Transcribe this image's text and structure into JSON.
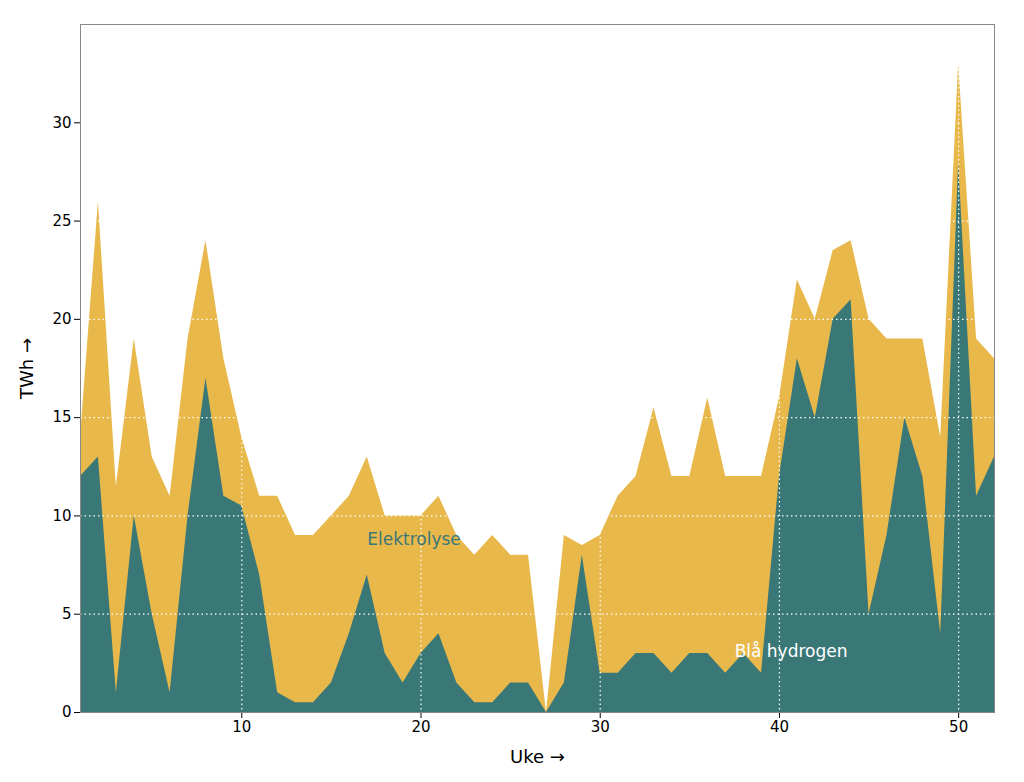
{
  "chart_data": {
    "type": "area",
    "xlabel": "Uke",
    "ylabel": "TWh",
    "x": [
      1,
      2,
      3,
      4,
      5,
      6,
      7,
      8,
      9,
      10,
      11,
      12,
      13,
      14,
      15,
      16,
      17,
      18,
      19,
      20,
      21,
      22,
      23,
      24,
      25,
      26,
      27,
      28,
      29,
      30,
      31,
      32,
      33,
      34,
      35,
      36,
      37,
      38,
      39,
      40,
      41,
      42,
      43,
      44,
      45,
      46,
      47,
      48,
      49,
      50,
      51,
      52
    ],
    "series": [
      {
        "name": "Elektrolyse",
        "color": "#E8B84B",
        "values": [
          14,
          26,
          11.5,
          19,
          13,
          11,
          19,
          24,
          18,
          14,
          11,
          11,
          9,
          9,
          10,
          11,
          13,
          10,
          10,
          10,
          11,
          9,
          8,
          9,
          8,
          8,
          0,
          9,
          8.5,
          9,
          11,
          12,
          15.5,
          12,
          12,
          16,
          12,
          12,
          12,
          16,
          22,
          20,
          23.5,
          24,
          20,
          19,
          19,
          19,
          14,
          33,
          19,
          18
        ]
      },
      {
        "name": "Blå hydrogen",
        "color": "#3A7878",
        "values": [
          12,
          13,
          1,
          10,
          5,
          1,
          10,
          17,
          11,
          10.5,
          7,
          1,
          0.5,
          0.5,
          1.5,
          4,
          7,
          3,
          1.5,
          3,
          4,
          1.5,
          0.5,
          0.5,
          1.5,
          1.5,
          0,
          1.5,
          8,
          2,
          2,
          3,
          3,
          2,
          3,
          3,
          2,
          3,
          2,
          12,
          18,
          15,
          20,
          21,
          5,
          9,
          15,
          12,
          4,
          28,
          11,
          13
        ]
      }
    ],
    "stacked": false,
    "annotations": [
      {
        "text": "Elektrolyse",
        "x": 17,
        "y": 8.5,
        "color": "#3A7878"
      },
      {
        "text": "Blå hydrogen",
        "x": 37.5,
        "y": 2.8,
        "color": "#ffffff"
      }
    ],
    "xlim": [
      1,
      52
    ],
    "ylim": [
      0,
      35
    ],
    "xticks": [
      10,
      20,
      30,
      40,
      50
    ],
    "yticks": [
      0,
      5,
      10,
      15,
      20,
      25,
      30
    ],
    "grid": true
  }
}
